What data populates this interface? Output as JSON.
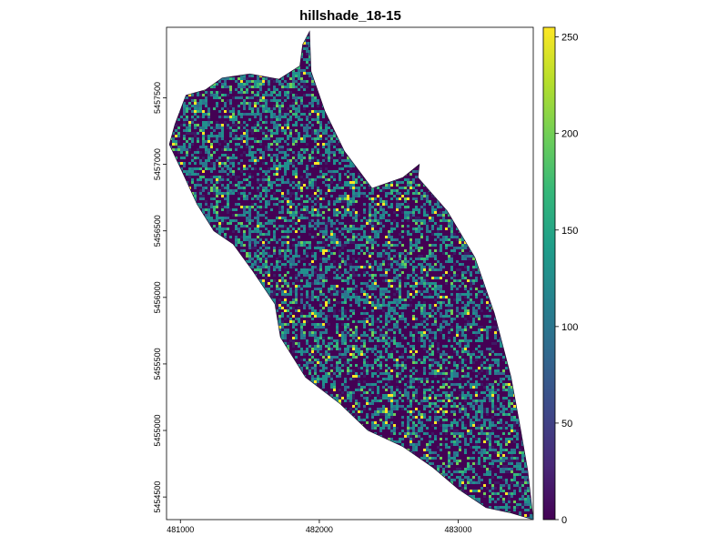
{
  "chart_data": {
    "type": "heatmap",
    "title": "hillshade_18-15",
    "xlabel": "",
    "ylabel": "",
    "xlim": [
      480900,
      483540
    ],
    "ylim": [
      5454330,
      5458030
    ],
    "x_ticks": [
      481000,
      482000,
      483000
    ],
    "y_ticks": [
      5454500,
      5455000,
      5455500,
      5456000,
      5456500,
      5457000,
      5457500
    ],
    "x_tick_labels": [
      "481000",
      "482000",
      "483000"
    ],
    "y_tick_labels": [
      "5454500",
      "5455000",
      "5455500",
      "5456000",
      "5456500",
      "5457000",
      "5457500"
    ],
    "colorbar": {
      "range": [
        0,
        255
      ],
      "ticks": [
        0,
        50,
        100,
        150,
        200,
        250
      ],
      "tick_labels": [
        "0",
        "50",
        "100",
        "150",
        "200",
        "250"
      ],
      "colormap": "viridis",
      "colors": [
        "#440154",
        "#482878",
        "#3e4989",
        "#31688e",
        "#26828e",
        "#1f9e89",
        "#35b779",
        "#6ece58",
        "#b5de2b",
        "#fde725"
      ]
    },
    "raster_extent_outline_data_units": [
      [
        480920,
        5457150
      ],
      [
        480960,
        5457300
      ],
      [
        481040,
        5457520
      ],
      [
        481180,
        5457560
      ],
      [
        481300,
        5457650
      ],
      [
        481500,
        5457680
      ],
      [
        481710,
        5457640
      ],
      [
        481860,
        5457740
      ],
      [
        481880,
        5457900
      ],
      [
        481930,
        5458000
      ],
      [
        481940,
        5457700
      ],
      [
        482040,
        5457400
      ],
      [
        482180,
        5457100
      ],
      [
        482380,
        5456820
      ],
      [
        482600,
        5456900
      ],
      [
        482720,
        5457000
      ],
      [
        482710,
        5456900
      ],
      [
        482920,
        5456650
      ],
      [
        483120,
        5456300
      ],
      [
        483260,
        5455880
      ],
      [
        483380,
        5455400
      ],
      [
        483450,
        5455000
      ],
      [
        483500,
        5454700
      ],
      [
        483540,
        5454330
      ],
      [
        483380,
        5454380
      ],
      [
        483200,
        5454420
      ],
      [
        483000,
        5454560
      ],
      [
        482820,
        5454720
      ],
      [
        482600,
        5454880
      ],
      [
        482350,
        5455000
      ],
      [
        482150,
        5455200
      ],
      [
        481900,
        5455400
      ],
      [
        481720,
        5455700
      ],
      [
        481680,
        5455950
      ],
      [
        481520,
        5456200
      ],
      [
        481380,
        5456400
      ],
      [
        481240,
        5456500
      ],
      [
        481120,
        5456700
      ],
      [
        481010,
        5456950
      ]
    ],
    "raster_note": "pixelated hillshade values (0-255) inside the outline; mostly dark purple and teal with scattered green/yellow pixels"
  }
}
